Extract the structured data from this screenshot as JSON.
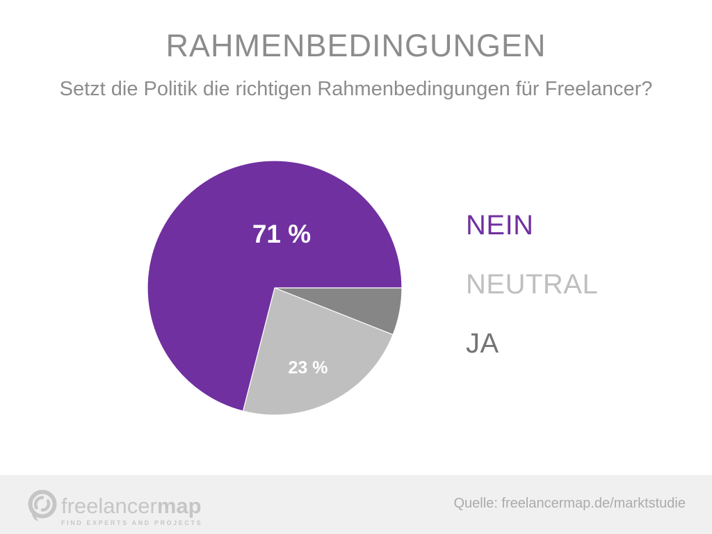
{
  "chart_data": {
    "type": "pie",
    "title": "RAHMENBEDINGUNGEN",
    "subtitle": "Setzt die Politik die richtigen Rahmenbedingungen für Freelancer?",
    "slices": [
      {
        "label": "NEIN",
        "value": 71,
        "display": "71 %",
        "color": "#7030A0",
        "legend_color": "#7030A0"
      },
      {
        "label": "NEUTRAL",
        "value": 23,
        "display": "23 %",
        "color": "#BFBFBF",
        "legend_color": "#BFBFBF"
      },
      {
        "label": "JA",
        "value": 6,
        "display": "",
        "color": "#868686",
        "legend_color": "#747474"
      }
    ],
    "legend_position": "right",
    "geometry": {
      "start_anchor": "3-oclock",
      "direction": "clockwise",
      "draw_order": "JA, NEUTRAL, NEIN"
    },
    "slice_border_color": "#FFFFFF"
  },
  "footer": {
    "brand_regular": "freelancer",
    "brand_bold": "map",
    "tagline": "FIND EXPERTS AND PROJECTS",
    "source": "Quelle: freelancermap.de/marktstudie",
    "background_color": "#F0F0F0",
    "brand_color": "#C6C6C6",
    "source_color": "#ABABAB"
  },
  "colors": {
    "title_gray": "#8C8C8C",
    "accent_purple": "#7030A0"
  }
}
